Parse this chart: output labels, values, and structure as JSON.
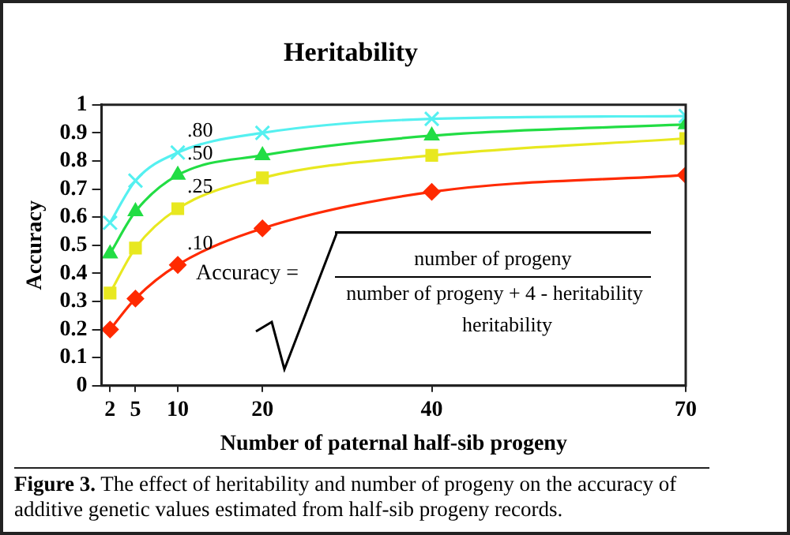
{
  "chart_data": {
    "type": "line",
    "title": "Heritability",
    "xlabel": "Number of paternal half-sib progeny",
    "ylabel": "Accuracy",
    "x": [
      2,
      5,
      10,
      20,
      40,
      70
    ],
    "series": [
      {
        "name": ".80",
        "color": "#55f0f0",
        "marker": "cross",
        "values": [
          0.58,
          0.73,
          0.83,
          0.9,
          0.95,
          0.96
        ]
      },
      {
        "name": ".50",
        "color": "#22dd44",
        "marker": "triangle",
        "values": [
          0.47,
          0.62,
          0.75,
          0.82,
          0.89,
          0.93
        ]
      },
      {
        "name": ".25",
        "color": "#e8e820",
        "marker": "square",
        "values": [
          0.33,
          0.49,
          0.63,
          0.74,
          0.82,
          0.88
        ]
      },
      {
        "name": ".10",
        "color": "#ff2a00",
        "marker": "diamond",
        "values": [
          0.2,
          0.31,
          0.43,
          0.56,
          0.69,
          0.75
        ]
      }
    ],
    "xlim": [
      1,
      70
    ],
    "xticks": [
      2,
      5,
      10,
      20,
      40,
      70
    ],
    "ylim": [
      0,
      1
    ],
    "yticks": [
      0,
      0.1,
      0.2,
      0.3,
      0.4,
      0.5,
      0.6,
      0.7,
      0.8,
      0.9,
      1
    ],
    "grid": false,
    "legend": false,
    "line_style": "solid",
    "annotations": [
      "Accuracy =",
      "number of progeny",
      "number of progeny + 4 - heritability",
      "heritability",
      "Figure 3.",
      "The effect of heritability and number of progeny on the accuracy of additive genetic values estimated from half-sib progeny records."
    ]
  }
}
